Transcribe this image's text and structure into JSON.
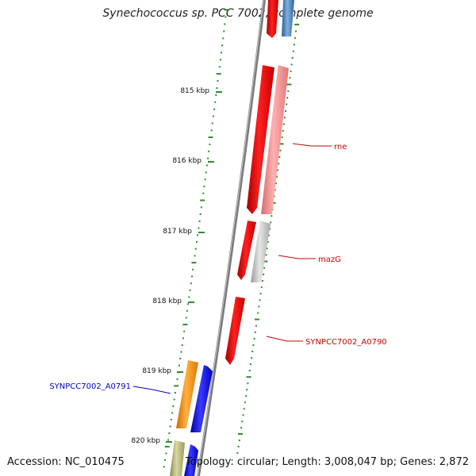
{
  "title": "Synechococcus sp. PCC 7002, complete genome",
  "footer": {
    "accession": "Accession: NC_010475",
    "summary": "Topology: circular; Length: 3,008,047 bp; Genes: 2,872"
  },
  "ticks": [
    {
      "label": "815 kbp"
    },
    {
      "label": "816 kbp"
    },
    {
      "label": "817 kbp"
    },
    {
      "label": "818 kbp"
    },
    {
      "label": "819 kbp"
    },
    {
      "label": "820 kbp"
    }
  ],
  "gene_labels": {
    "rne": "rne",
    "mazG": "mazG",
    "a0790": "SYNPCC7002_A0790",
    "a0791": "SYNPCC7002_A0791"
  },
  "colors": {
    "backbone": "#888888",
    "minor_tick": "#2e8b2e",
    "forward_gene": "#ee0000",
    "reverse_gene": "#0000ee",
    "forward_label": "#cc0000",
    "reverse_label": "#0000cc"
  }
}
